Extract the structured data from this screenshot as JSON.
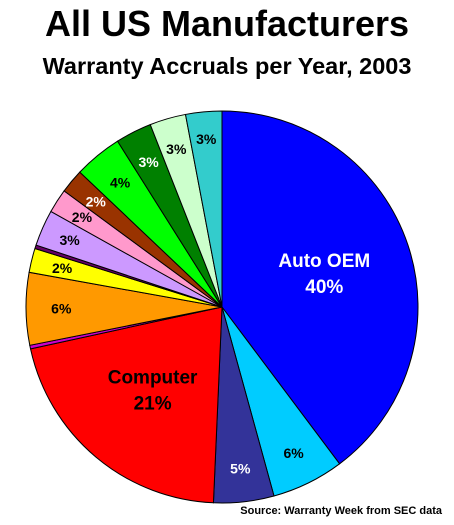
{
  "chart_data": {
    "type": "pie",
    "title": "All US Manufacturers",
    "subtitle": "Warranty Accruals per Year, 2003",
    "source": "Source: Warranty Week from SEC data",
    "slices": [
      {
        "name": "Auto OEM",
        "label": "Auto OEM",
        "value": 40,
        "pct_label": "40%",
        "color": "#0000ff",
        "text_color": "#ffffff"
      },
      {
        "name": "",
        "label": "",
        "value": 6,
        "pct_label": "6%",
        "color": "#00ccff",
        "text_color": "#000000"
      },
      {
        "name": "",
        "label": "",
        "value": 5,
        "pct_label": "5%",
        "color": "#333399",
        "text_color": "#ffffff"
      },
      {
        "name": "Computer",
        "label": "Computer",
        "value": 21,
        "pct_label": "21%",
        "color": "#ff0000",
        "text_color": "#000000"
      },
      {
        "name": "",
        "label": "",
        "value": 0.3,
        "pct_label": "",
        "color": "#cc00cc",
        "text_color": "#000000"
      },
      {
        "name": "",
        "label": "",
        "value": 6,
        "pct_label": "6%",
        "color": "#ff9900",
        "text_color": "#000000"
      },
      {
        "name": "",
        "label": "",
        "value": 2,
        "pct_label": "2%",
        "color": "#ffff00",
        "text_color": "#000000"
      },
      {
        "name": "",
        "label": "",
        "value": 0.3,
        "pct_label": "",
        "color": "#660066",
        "text_color": "#000000"
      },
      {
        "name": "",
        "label": "",
        "value": 3,
        "pct_label": "3%",
        "color": "#cc99ff",
        "text_color": "#000000"
      },
      {
        "name": "",
        "label": "",
        "value": 2,
        "pct_label": "2%",
        "color": "#ff99cc",
        "text_color": "#000000"
      },
      {
        "name": "",
        "label": "",
        "value": 2,
        "pct_label": "2%",
        "color": "#993300",
        "text_color": "#ffffff"
      },
      {
        "name": "",
        "label": "",
        "value": 4,
        "pct_label": "4%",
        "color": "#00ff00",
        "text_color": "#000000"
      },
      {
        "name": "",
        "label": "",
        "value": 3,
        "pct_label": "3%",
        "color": "#008000",
        "text_color": "#ffffff"
      },
      {
        "name": "",
        "label": "",
        "value": 3,
        "pct_label": "3%",
        "color": "#ccffcc",
        "text_color": "#000000"
      },
      {
        "name": "",
        "label": "",
        "value": 3,
        "pct_label": "3%",
        "color": "#33cccc",
        "text_color": "#000000"
      }
    ]
  }
}
